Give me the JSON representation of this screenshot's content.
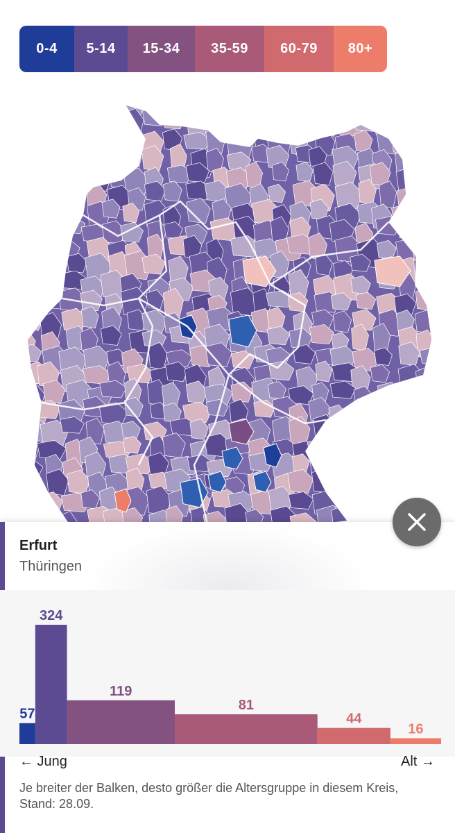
{
  "legend": [
    {
      "label": "0-4",
      "color": "#1f3c99"
    },
    {
      "label": "5-14",
      "color": "#5c4a93"
    },
    {
      "label": "15-34",
      "color": "#835281"
    },
    {
      "label": "35-59",
      "color": "#a85a78"
    },
    {
      "label": "60-79",
      "color": "#d16a6f"
    },
    {
      "label": "80+",
      "color": "#ee7c6b"
    }
  ],
  "map": {
    "description_icon": "germany-districts-map",
    "colors": [
      "#5a4a92",
      "#6a5aa0",
      "#7d6bab",
      "#9184b8",
      "#a69cc4",
      "#b9a9c9",
      "#c9a6bb",
      "#d9b7c2",
      "#f1c1bd",
      "#2f5fb0",
      "#1d3f9a",
      "#7a4e84"
    ]
  },
  "close_icon": "close-icon",
  "panel": {
    "city": "Erfurt",
    "region": "Thüringen",
    "accent_color": "#5c4a93",
    "jung_label": "← Jung",
    "alt_label": "Alt →",
    "note": "Je breiter der Balken, desto größer die Altersgruppe in diesem Kreis, Stand: 28.09."
  },
  "chart_data": {
    "type": "bar",
    "categories": [
      "0-4",
      "5-14",
      "15-34",
      "35-59",
      "60-79",
      "80+"
    ],
    "values": [
      57,
      324,
      119,
      81,
      44,
      16
    ],
    "colors": [
      "#1f3c99",
      "#5c4a93",
      "#835281",
      "#a85a78",
      "#d16a6f",
      "#ee7c6b"
    ],
    "widths": [
      5,
      10,
      34,
      45,
      23,
      16
    ]
  }
}
